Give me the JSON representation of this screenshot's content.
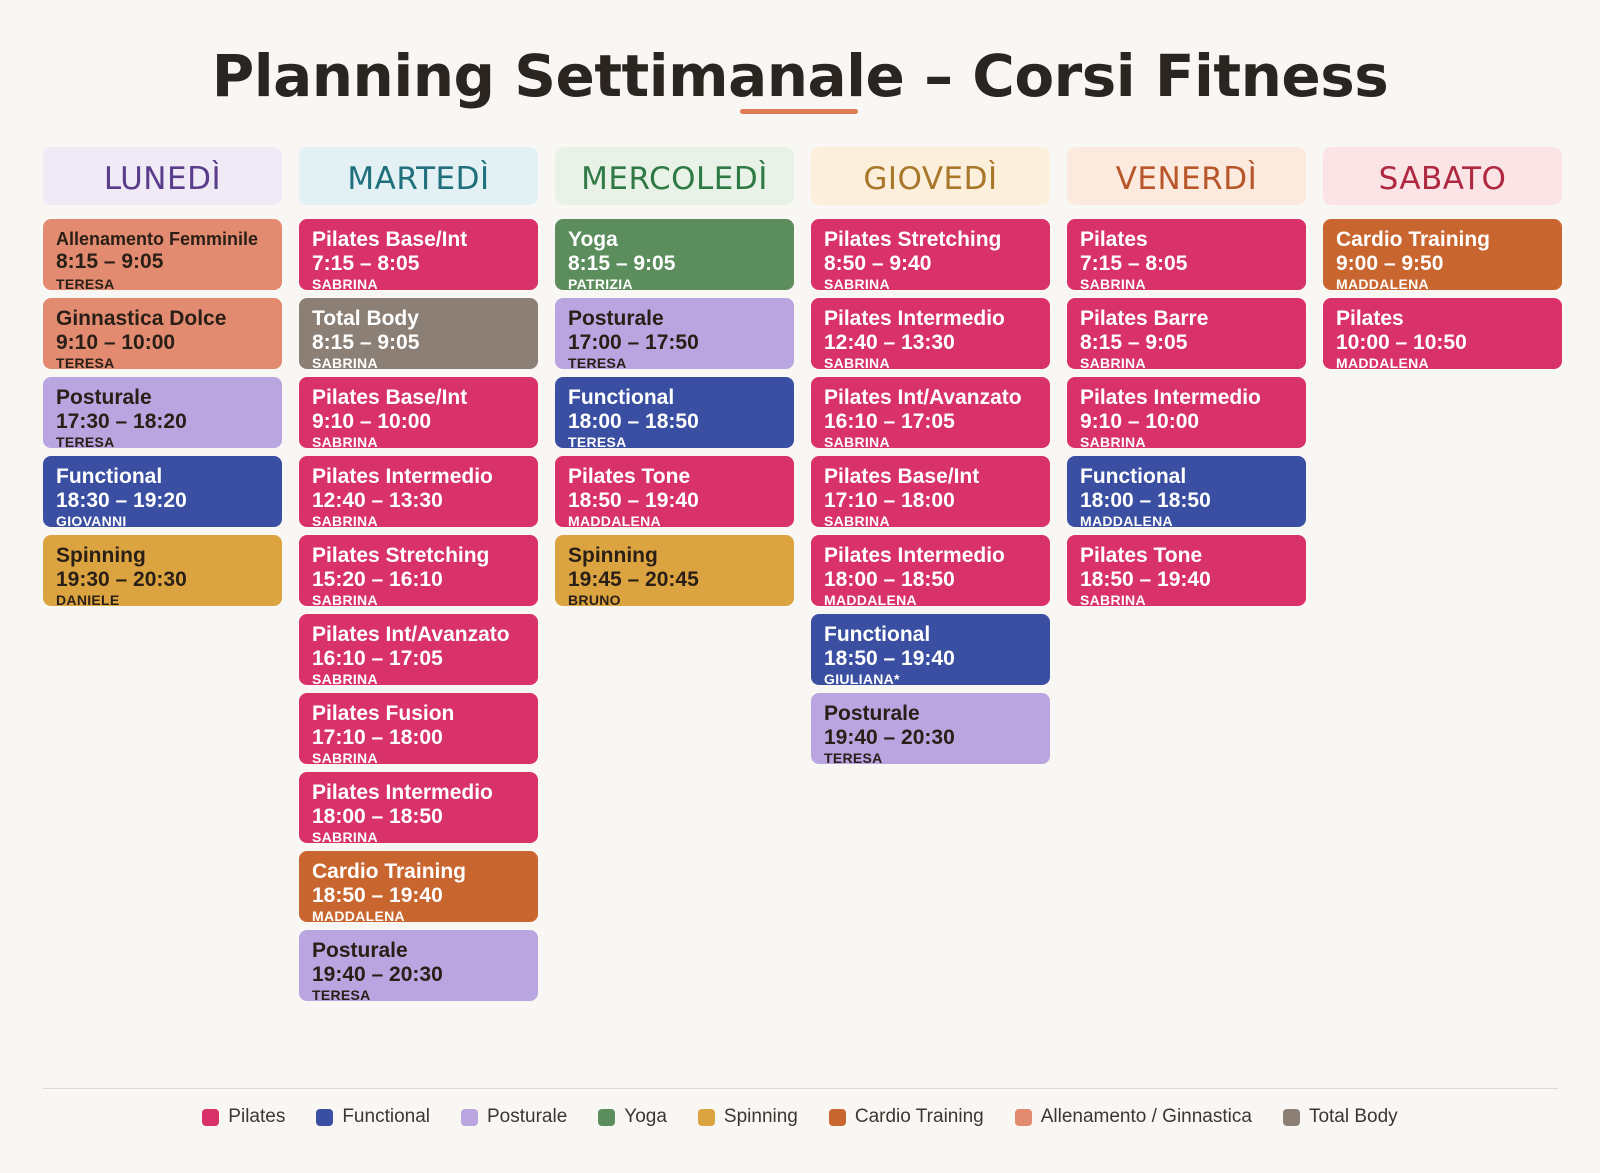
{
  "title": "Planning Settimanale – Corsi Fitness",
  "categories": {
    "pilates": {
      "label": "Pilates",
      "color": "#d9326a",
      "text": "light"
    },
    "functional": {
      "label": "Functional",
      "color": "#3a4fa1",
      "text": "light"
    },
    "posturale": {
      "label": "Posturale",
      "color": "#b9a5df",
      "text": "dark"
    },
    "yoga": {
      "label": "Yoga",
      "color": "#5c8d5d",
      "text": "light"
    },
    "spinning": {
      "label": "Spinning",
      "color": "#dca441",
      "text": "dark"
    },
    "cardio": {
      "label": "Cardio Training",
      "color": "#c9652e",
      "text": "light"
    },
    "allenamento": {
      "label": "Allenamento / Ginnastica",
      "color": "#e28b70",
      "text": "dark"
    },
    "totalbody": {
      "label": "Total Body",
      "color": "#8c8076",
      "text": "light"
    }
  },
  "days": [
    {
      "name": "LUNEDÌ",
      "header_bg": "#efeaf6",
      "header_color": "#5a3d8a",
      "classes": [
        {
          "name": "Allenamento Femminile",
          "time": "8:15 – 9:05",
          "instructor": "TERESA",
          "category": "allenamento"
        },
        {
          "name": "Ginnastica Dolce",
          "time": "9:10 – 10:00",
          "instructor": "TERESA",
          "category": "allenamento"
        },
        {
          "name": "Posturale",
          "time": "17:30 – 18:20",
          "instructor": "TERESA",
          "category": "posturale"
        },
        {
          "name": "Functional",
          "time": "18:30 – 19:20",
          "instructor": "GIOVANNI",
          "category": "functional"
        },
        {
          "name": "Spinning",
          "time": "19:30 – 20:30",
          "instructor": "DANIELE",
          "category": "spinning"
        }
      ]
    },
    {
      "name": "MARTEDÌ",
      "header_bg": "#e4f1f4",
      "header_color": "#1f6f7d",
      "classes": [
        {
          "name": "Pilates Base/Int",
          "time": "7:15 – 8:05",
          "instructor": "SABRINA",
          "category": "pilates"
        },
        {
          "name": "Total Body",
          "time": "8:15 – 9:05",
          "instructor": "SABRINA",
          "category": "totalbody"
        },
        {
          "name": "Pilates Base/Int",
          "time": "9:10 – 10:00",
          "instructor": "SABRINA",
          "category": "pilates"
        },
        {
          "name": "Pilates Intermedio",
          "time": "12:40 – 13:30",
          "instructor": "SABRINA",
          "category": "pilates"
        },
        {
          "name": "Pilates Stretching",
          "time": "15:20 – 16:10",
          "instructor": "SABRINA",
          "category": "pilates"
        },
        {
          "name": "Pilates Int/Avanzato",
          "time": "16:10 – 17:05",
          "instructor": "SABRINA",
          "category": "pilates"
        },
        {
          "name": "Pilates Fusion",
          "time": "17:10 – 18:00",
          "instructor": "SABRINA",
          "category": "pilates"
        },
        {
          "name": "Pilates Intermedio",
          "time": "18:00 – 18:50",
          "instructor": "SABRINA",
          "category": "pilates"
        },
        {
          "name": "Cardio Training",
          "time": "18:50 – 19:40",
          "instructor": "MADDALENA",
          "category": "cardio"
        },
        {
          "name": "Posturale",
          "time": "19:40 – 20:30",
          "instructor": "TERESA",
          "category": "posturale"
        }
      ]
    },
    {
      "name": "MERCOLEDÌ",
      "header_bg": "#e9f2e7",
      "header_color": "#2f7a44",
      "classes": [
        {
          "name": "Yoga",
          "time": "8:15 – 9:05",
          "instructor": "PATRIZIA",
          "category": "yoga"
        },
        {
          "name": "Posturale",
          "time": "17:00 – 17:50",
          "instructor": "TERESA",
          "category": "posturale"
        },
        {
          "name": "Functional",
          "time": "18:00 – 18:50",
          "instructor": "TERESA",
          "category": "functional"
        },
        {
          "name": "Pilates Tone",
          "time": "18:50 – 19:40",
          "instructor": "MADDALENA",
          "category": "pilates"
        },
        {
          "name": "Spinning",
          "time": "19:45 – 20:45",
          "instructor": "BRUNO",
          "category": "spinning"
        }
      ]
    },
    {
      "name": "GIOVEDÌ",
      "header_bg": "#fcf0dd",
      "header_color": "#a8772a",
      "classes": [
        {
          "name": "Pilates Stretching",
          "time": "8:50 – 9:40",
          "instructor": "SABRINA",
          "category": "pilates"
        },
        {
          "name": "Pilates Intermedio",
          "time": "12:40 – 13:30",
          "instructor": "SABRINA",
          "category": "pilates"
        },
        {
          "name": "Pilates Int/Avanzato",
          "time": "16:10 – 17:05",
          "instructor": "SABRINA",
          "category": "pilates"
        },
        {
          "name": "Pilates Base/Int",
          "time": "17:10 – 18:00",
          "instructor": "SABRINA",
          "category": "pilates"
        },
        {
          "name": "Pilates Intermedio",
          "time": "18:00 – 18:50",
          "instructor": "MADDALENA",
          "category": "pilates"
        },
        {
          "name": "Functional",
          "time": "18:50 – 19:40",
          "instructor": "GIULIANA*",
          "category": "functional"
        },
        {
          "name": "Posturale",
          "time": "19:40 – 20:30",
          "instructor": "TERESA",
          "category": "posturale"
        }
      ]
    },
    {
      "name": "VENERDÌ",
      "header_bg": "#fbeadd",
      "header_color": "#b8562a",
      "classes": [
        {
          "name": "Pilates",
          "time": "7:15 – 8:05",
          "instructor": "SABRINA",
          "category": "pilates"
        },
        {
          "name": "Pilates Barre",
          "time": "8:15 – 9:05",
          "instructor": "SABRINA",
          "category": "pilates"
        },
        {
          "name": "Pilates Intermedio",
          "time": "9:10 – 10:00",
          "instructor": "SABRINA",
          "category": "pilates"
        },
        {
          "name": "Functional",
          "time": "18:00 – 18:50",
          "instructor": "MADDALENA",
          "category": "functional"
        },
        {
          "name": "Pilates Tone",
          "time": "18:50 – 19:40",
          "instructor": "SABRINA",
          "category": "pilates"
        }
      ]
    },
    {
      "name": "SABATO",
      "header_bg": "#fbe4e6",
      "header_color": "#b0283f",
      "classes": [
        {
          "name": "Cardio Training",
          "time": "9:00 – 9:50",
          "instructor": "MADDALENA",
          "category": "cardio"
        },
        {
          "name": "Pilates",
          "time": "10:00 – 10:50",
          "instructor": "MADDALENA",
          "category": "pilates"
        }
      ]
    }
  ],
  "legend": [
    "pilates",
    "functional",
    "posturale",
    "yoga",
    "spinning",
    "cardio",
    "allenamento",
    "totalbody"
  ]
}
